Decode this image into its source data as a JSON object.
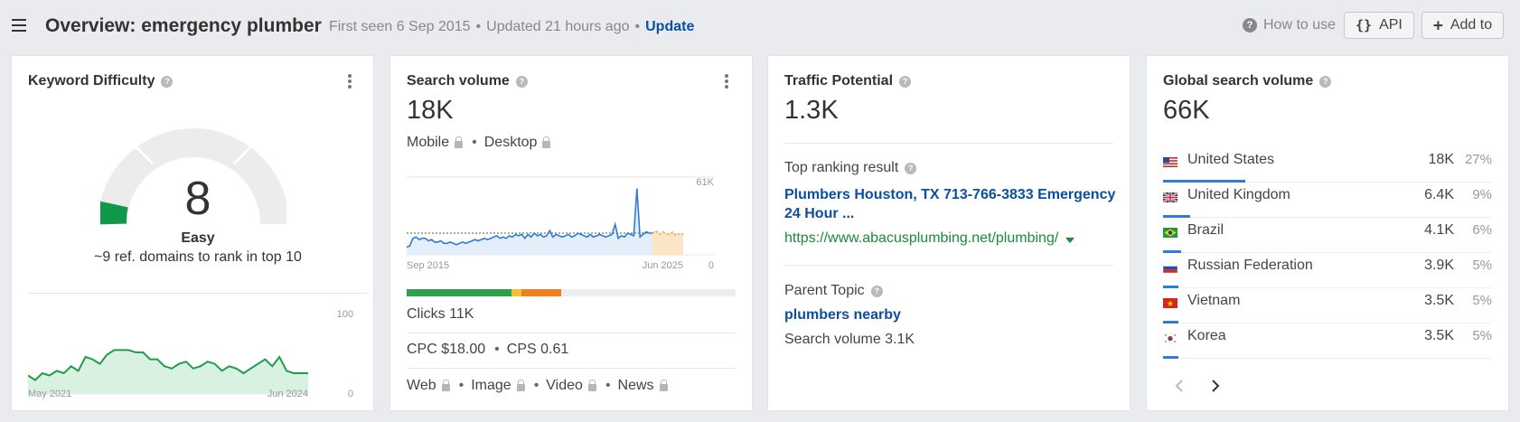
{
  "header": {
    "title": "Overview: emergency plumber",
    "first_seen": "First seen 6 Sep 2015",
    "updated": "Updated 21 hours ago",
    "update_link": "Update",
    "how_to_use": "How to use",
    "api_label": "API",
    "add_to_label": "Add to"
  },
  "kd": {
    "title": "Keyword Difficulty",
    "value": "8",
    "level": "Easy",
    "subtitle": "~9 ref. domains to rank in top 10",
    "chart": {
      "x_start": "May 2021",
      "x_end": "Jun 2024",
      "y_max": "100",
      "y_min": "0",
      "values": [
        8,
        6,
        9,
        8,
        10,
        9,
        12,
        10,
        16,
        15,
        13,
        17,
        19,
        19,
        19,
        18,
        18,
        15,
        15,
        12,
        11,
        13,
        14,
        11,
        12,
        14,
        13,
        10,
        12,
        11,
        9,
        11,
        13,
        15,
        12,
        16,
        10,
        9,
        9,
        9
      ]
    }
  },
  "search_volume": {
    "title": "Search volume",
    "value": "18K",
    "mobile": "Mobile",
    "desktop": "Desktop",
    "chart": {
      "x_start": "Sep 2015",
      "x_end": "Jun 2025",
      "y_max": "61K",
      "y_min": "0",
      "values": [
        6,
        7,
        13,
        14,
        12,
        13,
        13,
        11,
        12,
        10,
        10,
        11,
        9,
        9,
        10,
        9,
        8,
        9,
        10,
        9,
        10,
        11,
        12,
        11,
        12,
        13,
        12,
        13,
        14,
        15,
        13,
        14,
        13,
        15,
        14,
        16,
        15,
        16,
        13,
        16,
        14,
        17,
        15,
        16,
        14,
        15,
        19,
        14,
        16,
        15,
        14,
        15,
        16,
        14,
        15,
        17,
        16,
        15,
        14,
        16,
        14,
        15,
        16,
        15,
        14,
        15,
        16,
        24,
        13,
        15,
        14,
        17,
        16,
        15,
        52,
        14,
        16,
        18,
        17,
        17
      ],
      "forecast": [
        17,
        19,
        16,
        18,
        17,
        16,
        18,
        15,
        17,
        16
      ]
    },
    "ctr_colors": [
      "#2da14c",
      "#f1c232",
      "#f0801f"
    ],
    "ctr_shares": [
      0.32,
      0.03,
      0.12
    ],
    "clicks": "Clicks 11K",
    "cpc": "CPC $18.00",
    "cps": "CPS 0.61",
    "serp_features": [
      "Web",
      "Image",
      "Video",
      "News"
    ]
  },
  "traffic_potential": {
    "title": "Traffic Potential",
    "value": "1.3K",
    "top_ranking_label": "Top ranking result",
    "top_result_title": "Plumbers Houston, TX 713-766-3833 Emergency 24 Hour ...",
    "top_result_url": "https://www.abacusplumbing.net/plumbing/",
    "parent_topic_label": "Parent Topic",
    "parent_topic": "plumbers nearby",
    "parent_volume": "Search volume 3.1K"
  },
  "global": {
    "title": "Global search volume",
    "value": "66K",
    "countries": [
      {
        "flag": "us-flag-icon",
        "name": "United States",
        "volume": "18K",
        "pct": "27%",
        "share": 0.27
      },
      {
        "flag": "uk-flag-icon",
        "name": "United Kingdom",
        "volume": "6.4K",
        "pct": "9%",
        "share": 0.09
      },
      {
        "flag": "brazil-flag-icon",
        "name": "Brazil",
        "volume": "4.1K",
        "pct": "6%",
        "share": 0.06
      },
      {
        "flag": "russia-flag-icon",
        "name": "Russian Federation",
        "volume": "3.9K",
        "pct": "5%",
        "share": 0.05
      },
      {
        "flag": "vietnam-flag-icon",
        "name": "Vietnam",
        "volume": "3.5K",
        "pct": "5%",
        "share": 0.05
      },
      {
        "flag": "korea-flag-icon",
        "name": "Korea",
        "volume": "3.5K",
        "pct": "5%",
        "share": 0.05
      }
    ],
    "prev_icon": "chevron-left-icon",
    "next_icon": "chevron-right-icon"
  }
}
